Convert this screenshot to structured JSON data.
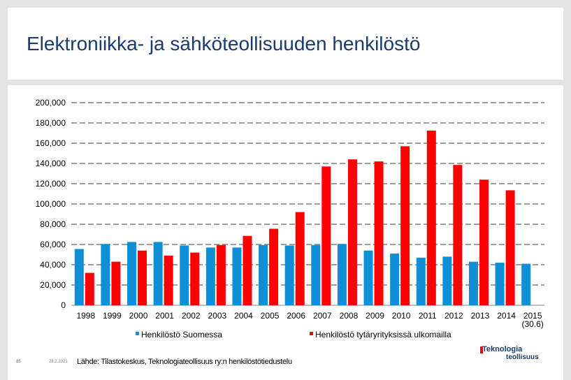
{
  "slide": {
    "title": "Elektroniikka- ja sähköteollisuuden henkilöstö",
    "page_number": "85",
    "date": "28.2.2021",
    "source": "Lähde: Tilastokeskus, Teknologiateollisuus ry:n henkilöstötiedustelu",
    "logo_line1": "Teknologia",
    "logo_line2": "teollisuus"
  },
  "colors": {
    "series1": "#0f8fd6",
    "series2": "#ff0000",
    "title": "#1b3a6e"
  },
  "chart_data": {
    "type": "bar",
    "categories": [
      "1998",
      "1999",
      "2000",
      "2001",
      "2002",
      "2003",
      "2004",
      "2005",
      "2006",
      "2007",
      "2008",
      "2009",
      "2010",
      "2011",
      "2012",
      "2013",
      "2014",
      "2015\n(30.6)"
    ],
    "series": [
      {
        "name": "Henkilöstö Suomessa",
        "values": [
          55500,
          60500,
          62500,
          62500,
          59000,
          57000,
          57000,
          59500,
          59000,
          59500,
          60500,
          54000,
          51000,
          47000,
          48000,
          43000,
          42000,
          41000
        ]
      },
      {
        "name": "Henkilöstö tytäryrityksissä ulkomailla",
        "values": [
          32000,
          43000,
          54000,
          49000,
          52000,
          59500,
          68500,
          75500,
          92000,
          137000,
          144000,
          142000,
          157000,
          172500,
          138500,
          124000,
          113500,
          null
        ]
      }
    ],
    "y_ticks": [
      "0",
      "20,000",
      "40,000",
      "60,000",
      "80,000",
      "100,000",
      "120,000",
      "140,000",
      "160,000",
      "180,000",
      "200,000"
    ],
    "ylim": [
      0,
      200000
    ],
    "grid": true,
    "legend_position": "bottom"
  }
}
